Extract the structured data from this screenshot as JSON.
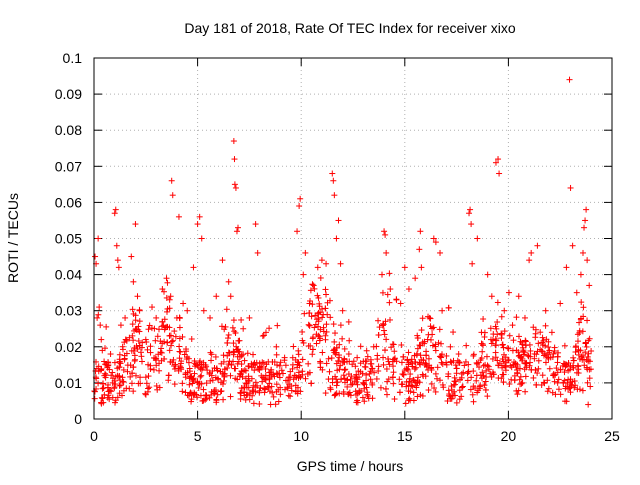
{
  "chart_data": {
    "type": "scatter",
    "title": "Day 181 of 2018, Rate Of TEC Index for receiver xixo",
    "xlabel": "GPS time / hours",
    "ylabel": "ROTI / TECUs",
    "xlim": [
      0,
      25
    ],
    "ylim": [
      0,
      0.1
    ],
    "x_ticks": [
      0,
      5,
      10,
      15,
      20,
      25
    ],
    "x_tick_labels": [
      "0",
      "5",
      "10",
      "15",
      "20",
      "25"
    ],
    "y_ticks": [
      0,
      0.01,
      0.02,
      0.03,
      0.04,
      0.05,
      0.06,
      0.07,
      0.08,
      0.09,
      0.1
    ],
    "y_tick_labels": [
      "0",
      "0.01",
      "0.02",
      "0.03",
      "0.04",
      "0.05",
      "0.06",
      "0.07",
      "0.08",
      "0.09",
      "0.1"
    ],
    "grid": true,
    "marker": "+",
    "color": "#ff0000",
    "series": [
      {
        "points": [
          [
            0.05,
            0.045
          ],
          [
            0.1,
            0.043
          ],
          [
            0.2,
            0.05
          ],
          [
            0.25,
            0.031
          ],
          [
            0.3,
            0.026
          ],
          [
            0.35,
            0.022
          ],
          [
            0.15,
            0.028
          ],
          [
            0.4,
            0.019
          ],
          [
            0.5,
            0.012
          ],
          [
            0.6,
            0.015
          ],
          [
            0.8,
            0.018
          ],
          [
            0.9,
            0.01
          ],
          [
            1.0,
            0.057
          ],
          [
            1.05,
            0.058
          ],
          [
            1.1,
            0.048
          ],
          [
            1.15,
            0.044
          ],
          [
            1.2,
            0.042
          ],
          [
            1.3,
            0.026
          ],
          [
            1.5,
            0.028
          ],
          [
            1.8,
            0.045
          ],
          [
            1.9,
            0.038
          ],
          [
            2.0,
            0.054
          ],
          [
            2.1,
            0.034
          ],
          [
            2.2,
            0.03
          ],
          [
            2.5,
            0.022
          ],
          [
            2.8,
            0.031
          ],
          [
            3.0,
            0.028
          ],
          [
            3.3,
            0.036
          ],
          [
            3.5,
            0.039
          ],
          [
            3.7,
            0.034
          ],
          [
            3.75,
            0.066
          ],
          [
            3.8,
            0.062
          ],
          [
            4.0,
            0.028
          ],
          [
            4.1,
            0.056
          ],
          [
            4.3,
            0.032
          ],
          [
            4.5,
            0.03
          ],
          [
            4.8,
            0.042
          ],
          [
            5.0,
            0.054
          ],
          [
            5.1,
            0.056
          ],
          [
            5.2,
            0.05
          ],
          [
            5.3,
            0.03
          ],
          [
            5.6,
            0.028
          ],
          [
            5.9,
            0.034
          ],
          [
            6.2,
            0.044
          ],
          [
            6.5,
            0.038
          ],
          [
            6.6,
            0.034
          ],
          [
            6.75,
            0.077
          ],
          [
            6.78,
            0.072
          ],
          [
            6.8,
            0.065
          ],
          [
            6.85,
            0.064
          ],
          [
            6.9,
            0.052
          ],
          [
            6.95,
            0.053
          ],
          [
            7.2,
            0.025
          ],
          [
            7.5,
            0.028
          ],
          [
            7.8,
            0.054
          ],
          [
            7.9,
            0.046
          ],
          [
            8.3,
            0.024
          ],
          [
            8.8,
            0.02
          ],
          [
            9.2,
            0.017
          ],
          [
            9.6,
            0.015
          ],
          [
            9.8,
            0.052
          ],
          [
            9.9,
            0.059
          ],
          [
            9.95,
            0.061
          ],
          [
            10.1,
            0.04
          ],
          [
            10.2,
            0.046
          ],
          [
            10.4,
            0.032
          ],
          [
            10.6,
            0.037
          ],
          [
            10.8,
            0.042
          ],
          [
            11.0,
            0.044
          ],
          [
            11.2,
            0.043
          ],
          [
            11.5,
            0.068
          ],
          [
            11.55,
            0.066
          ],
          [
            11.6,
            0.062
          ],
          [
            11.7,
            0.05
          ],
          [
            11.8,
            0.055
          ],
          [
            11.9,
            0.043
          ],
          [
            12.0,
            0.03
          ],
          [
            12.3,
            0.018
          ],
          [
            12.7,
            0.017
          ],
          [
            13.1,
            0.016
          ],
          [
            13.5,
            0.02
          ],
          [
            13.9,
            0.04
          ],
          [
            14.0,
            0.052
          ],
          [
            14.05,
            0.051
          ],
          [
            14.1,
            0.046
          ],
          [
            14.3,
            0.036
          ],
          [
            14.6,
            0.033
          ],
          [
            14.8,
            0.032
          ],
          [
            15.0,
            0.042
          ],
          [
            15.2,
            0.036
          ],
          [
            15.5,
            0.039
          ],
          [
            15.7,
            0.047
          ],
          [
            15.75,
            0.052
          ],
          [
            15.8,
            0.042
          ],
          [
            16.2,
            0.028
          ],
          [
            16.4,
            0.05
          ],
          [
            16.5,
            0.049
          ],
          [
            16.7,
            0.046
          ],
          [
            16.8,
            0.03
          ],
          [
            17.2,
            0.02
          ],
          [
            17.6,
            0.018
          ],
          [
            18.1,
            0.057
          ],
          [
            18.15,
            0.058
          ],
          [
            18.2,
            0.054
          ],
          [
            18.25,
            0.043
          ],
          [
            18.5,
            0.05
          ],
          [
            18.7,
            0.024
          ],
          [
            19.0,
            0.04
          ],
          [
            19.2,
            0.034
          ],
          [
            19.4,
            0.071
          ],
          [
            19.5,
            0.072
          ],
          [
            19.55,
            0.068
          ],
          [
            19.8,
            0.03
          ],
          [
            20.2,
            0.026
          ],
          [
            20.5,
            0.034
          ],
          [
            20.8,
            0.028
          ],
          [
            21.0,
            0.044
          ],
          [
            21.1,
            0.046
          ],
          [
            21.4,
            0.048
          ],
          [
            21.8,
            0.03
          ],
          [
            22.1,
            0.024
          ],
          [
            22.5,
            0.032
          ],
          [
            22.8,
            0.042
          ],
          [
            22.95,
            0.094
          ],
          [
            23.0,
            0.064
          ],
          [
            23.1,
            0.048
          ],
          [
            23.3,
            0.035
          ],
          [
            23.5,
            0.04
          ],
          [
            23.6,
            0.046
          ],
          [
            23.65,
            0.053
          ],
          [
            23.7,
            0.055
          ],
          [
            23.75,
            0.058
          ],
          [
            23.8,
            0.044
          ],
          [
            23.9,
            0.037
          ],
          [
            23.95,
            0.009
          ],
          [
            23.85,
            0.004
          ]
        ]
      }
    ]
  }
}
